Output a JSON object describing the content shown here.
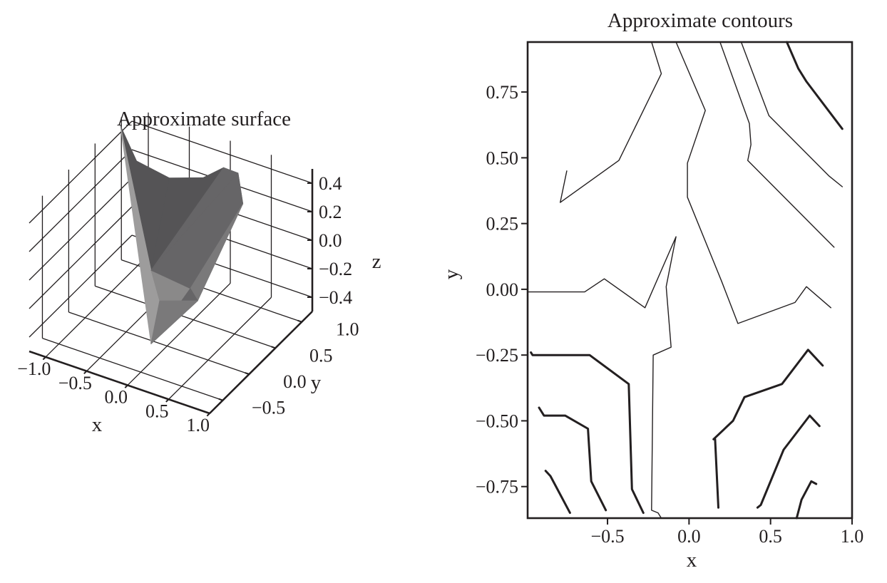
{
  "chart_data": [
    {
      "type": "surface3d",
      "title": "Approximate surface",
      "xlabel": "x",
      "ylabel": "y",
      "zlabel": "z",
      "xlim": [
        -1.2,
        1.0
      ],
      "ylim": [
        -0.75,
        1.2
      ],
      "zlim": [
        -0.5,
        0.5
      ],
      "x_ticks": [
        {
          "v": -1.0,
          "label": "−1.0"
        },
        {
          "v": -0.5,
          "label": "−0.5"
        },
        {
          "v": 0.0,
          "label": "0.0"
        },
        {
          "v": 0.5,
          "label": "0.5"
        },
        {
          "v": 1.0,
          "label": "1.0"
        }
      ],
      "y_ticks": [
        {
          "v": -0.5,
          "label": "−0.5"
        },
        {
          "v": 0.0,
          "label": "0.0"
        },
        {
          "v": 0.5,
          "label": "0.5"
        },
        {
          "v": 1.0,
          "label": "1.0"
        }
      ],
      "z_ticks": [
        {
          "v": 0.4,
          "label": "0.4"
        },
        {
          "v": 0.2,
          "label": "0.2"
        },
        {
          "v": 0.0,
          "label": "0.0"
        },
        {
          "v": -0.2,
          "label": "−0.2"
        },
        {
          "v": -0.4,
          "label": "−0.4"
        }
      ],
      "grid": true,
      "surface_colors": [
        "#9d9c9c",
        "#8a8989",
        "#7a797a",
        "#666567",
        "#555456"
      ]
    },
    {
      "type": "contour",
      "title": "Approximate contours",
      "xlabel": "x",
      "ylabel": "y",
      "xlim": [
        -0.99,
        1.0
      ],
      "ylim": [
        -0.87,
        0.94
      ],
      "x_ticks": [
        {
          "v": -0.5,
          "label": "−0.5"
        },
        {
          "v": 0.0,
          "label": "0.0"
        },
        {
          "v": 0.5,
          "label": "0.5"
        },
        {
          "v": 1.0,
          "label": "1.0"
        }
      ],
      "y_ticks": [
        {
          "v": 0.75,
          "label": "0.75"
        },
        {
          "v": 0.5,
          "label": "0.50"
        },
        {
          "v": 0.25,
          "label": "0.25"
        },
        {
          "v": 0.0,
          "label": "0.00"
        },
        {
          "v": -0.25,
          "label": "−0.25"
        },
        {
          "v": -0.5,
          "label": "−0.50"
        },
        {
          "v": -0.75,
          "label": "−0.75"
        }
      ],
      "line_color": "#231f20",
      "contour_lines": [
        {
          "weight": "thin",
          "points": [
            [
              -0.75,
              0.45
            ],
            [
              -0.79,
              0.33
            ],
            [
              -0.43,
              0.49
            ],
            [
              -0.17,
              0.82
            ],
            [
              -0.23,
              0.94
            ]
          ]
        },
        {
          "weight": "thin",
          "points": [
            [
              -0.08,
              0.94
            ],
            [
              0.1,
              0.68
            ],
            [
              -0.01,
              0.48
            ],
            [
              -0.01,
              0.35
            ],
            [
              0.2,
              0.03
            ],
            [
              0.3,
              -0.13
            ],
            [
              0.65,
              -0.05
            ],
            [
              0.72,
              0.01
            ],
            [
              0.87,
              -0.07
            ]
          ]
        },
        {
          "weight": "thin",
          "points": [
            [
              0.19,
              0.94
            ],
            [
              0.37,
              0.63
            ],
            [
              0.38,
              0.55
            ],
            [
              0.36,
              0.49
            ],
            [
              0.89,
              0.16
            ]
          ]
        },
        {
          "weight": "thin",
          "points": [
            [
              0.32,
              0.94
            ],
            [
              0.49,
              0.66
            ],
            [
              0.86,
              0.43
            ],
            [
              0.94,
              0.39
            ]
          ]
        },
        {
          "weight": "thin",
          "points": [
            [
              -0.99,
              -0.01
            ],
            [
              -0.64,
              -0.01
            ],
            [
              -0.52,
              0.04
            ],
            [
              -0.27,
              -0.07
            ],
            [
              -0.08,
              0.2
            ],
            [
              -0.14,
              0.01
            ],
            [
              -0.11,
              -0.22
            ],
            [
              -0.22,
              -0.25
            ],
            [
              -0.23,
              -0.84
            ],
            [
              -0.19,
              -0.85
            ],
            [
              -0.17,
              -0.87
            ]
          ]
        },
        {
          "weight": "thick",
          "points": [
            [
              0.6,
              0.94
            ],
            [
              0.67,
              0.84
            ],
            [
              0.72,
              0.79
            ],
            [
              0.94,
              0.61
            ]
          ]
        },
        {
          "weight": "thick",
          "points": [
            [
              -0.97,
              -0.24
            ],
            [
              -0.96,
              -0.25
            ],
            [
              -0.61,
              -0.25
            ],
            [
              -0.37,
              -0.36
            ],
            [
              -0.35,
              -0.76
            ],
            [
              -0.28,
              -0.85
            ]
          ]
        },
        {
          "weight": "thick",
          "points": [
            [
              -0.92,
              -0.45
            ],
            [
              -0.89,
              -0.48
            ],
            [
              -0.76,
              -0.48
            ],
            [
              -0.62,
              -0.53
            ],
            [
              -0.6,
              -0.73
            ],
            [
              -0.51,
              -0.84
            ]
          ]
        },
        {
          "weight": "thick",
          "points": [
            [
              -0.88,
              -0.69
            ],
            [
              -0.85,
              -0.71
            ],
            [
              -0.73,
              -0.85
            ]
          ]
        },
        {
          "weight": "thick",
          "points": [
            [
              0.15,
              -0.57
            ],
            [
              0.27,
              -0.5
            ],
            [
              0.34,
              -0.41
            ],
            [
              0.57,
              -0.36
            ],
            [
              0.73,
              -0.23
            ],
            [
              0.82,
              -0.29
            ]
          ]
        },
        {
          "weight": "thick",
          "points": [
            [
              0.18,
              -0.83
            ],
            [
              0.16,
              -0.57
            ]
          ]
        },
        {
          "weight": "thick",
          "points": [
            [
              0.42,
              -0.83
            ],
            [
              0.44,
              -0.82
            ],
            [
              0.58,
              -0.61
            ],
            [
              0.74,
              -0.48
            ],
            [
              0.8,
              -0.52
            ]
          ]
        },
        {
          "weight": "thick",
          "points": [
            [
              0.66,
              -0.87
            ],
            [
              0.69,
              -0.8
            ],
            [
              0.75,
              -0.73
            ],
            [
              0.78,
              -0.74
            ]
          ]
        }
      ]
    }
  ]
}
